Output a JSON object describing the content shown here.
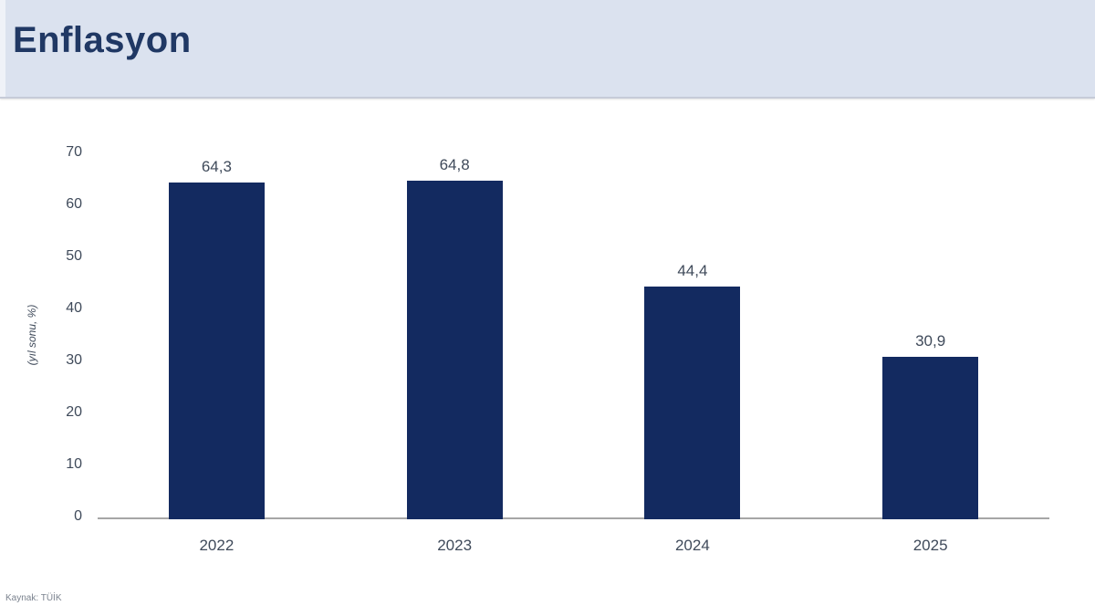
{
  "header": {
    "title": "Enflasyon"
  },
  "source_note": "Kaynak: TÜİK",
  "chart_data": {
    "type": "bar",
    "title": "Enflasyon",
    "categories": [
      "2022",
      "2023",
      "2024",
      "2025"
    ],
    "values": [
      64.3,
      64.8,
      44.4,
      30.9
    ],
    "value_labels": [
      "64,3",
      "64,8",
      "44,4",
      "30,9"
    ],
    "xlabel": "",
    "ylabel": "(yıl sonu, %)",
    "ylim": [
      0,
      70
    ],
    "yticks": [
      0,
      10,
      20,
      30,
      40,
      50,
      60,
      70
    ],
    "grid": false,
    "legend_position": "none",
    "colors": {
      "bar": "#132a60",
      "header_bg": "#dbe2ef",
      "title_text": "#203864",
      "label_text": "#3f4a5a",
      "axis_line": "#a6a6a6",
      "source_text": "#7a828e"
    }
  }
}
